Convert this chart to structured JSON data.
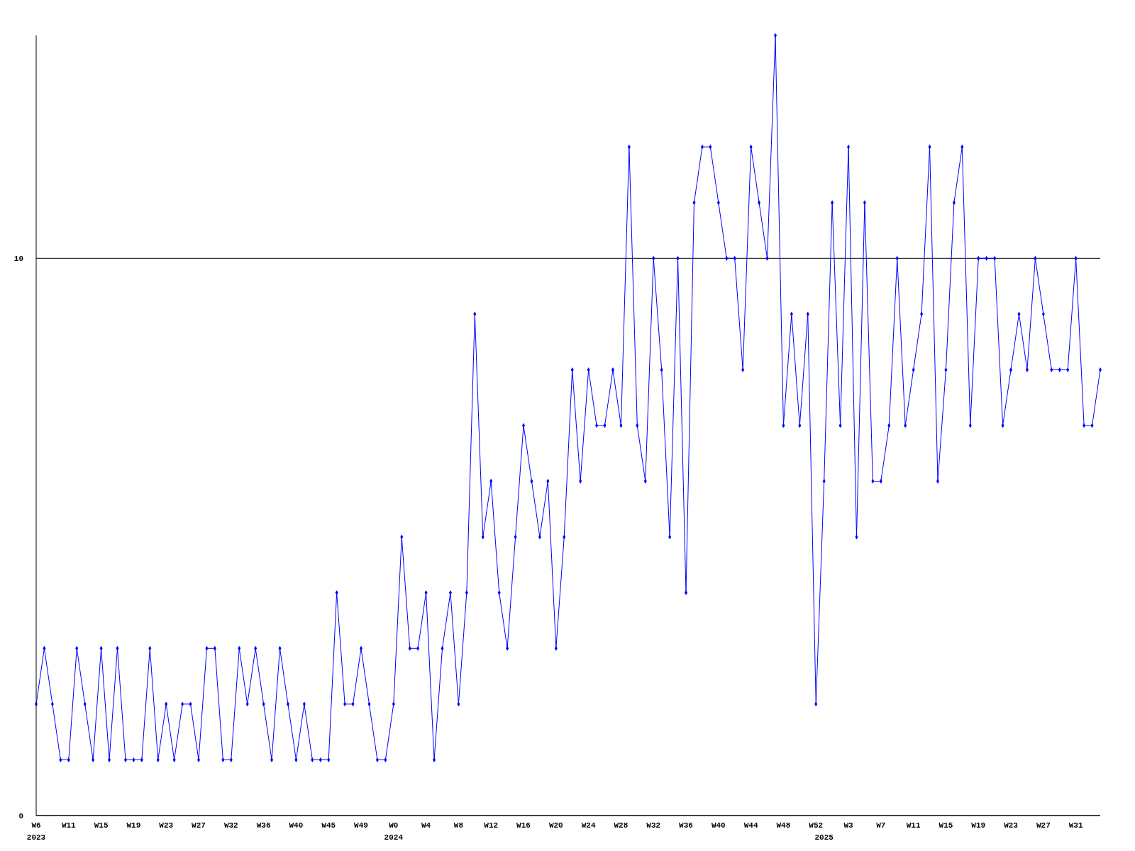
{
  "chart_data": {
    "type": "line",
    "categories": [
      "W6\n2023",
      null,
      null,
      null,
      "W11",
      null,
      null,
      null,
      "W15",
      null,
      null,
      null,
      "W19",
      null,
      null,
      null,
      "W23",
      null,
      null,
      null,
      "W27",
      null,
      null,
      null,
      "W32",
      null,
      null,
      null,
      "W36",
      null,
      null,
      null,
      "W40",
      null,
      null,
      null,
      "W45",
      null,
      null,
      null,
      "W49",
      null,
      null,
      null,
      "W0\n2024",
      null,
      null,
      null,
      "W4",
      null,
      null,
      null,
      "W8",
      null,
      null,
      null,
      "W12",
      null,
      null,
      null,
      "W16",
      null,
      null,
      null,
      "W20",
      null,
      null,
      null,
      "W24",
      null,
      null,
      null,
      "W28",
      null,
      null,
      null,
      "W32",
      null,
      null,
      null,
      "W36",
      null,
      null,
      null,
      "W40",
      null,
      null,
      null,
      "W44",
      null,
      null,
      null,
      "W48",
      null,
      null,
      null,
      "W52",
      "\n2025",
      null,
      null,
      "W3",
      null,
      null,
      null,
      "W7",
      null,
      null,
      null,
      "W11",
      null,
      null,
      null,
      "W15",
      null,
      null,
      null,
      "W19",
      null,
      null,
      null,
      "W23",
      null,
      null,
      null,
      "W27",
      null,
      null,
      null,
      "W31",
      null,
      null,
      null
    ],
    "series": [
      {
        "color": "#0000ff",
        "values": [
          2,
          3,
          2,
          1,
          1,
          3,
          2,
          1,
          3,
          1,
          3,
          1,
          1,
          1,
          3,
          1,
          2,
          1,
          2,
          2,
          1,
          3,
          3,
          1,
          1,
          3,
          2,
          3,
          2,
          1,
          3,
          2,
          1,
          2,
          1,
          1,
          1,
          4,
          2,
          2,
          3,
          2,
          1,
          1,
          2,
          5,
          3,
          3,
          4,
          1,
          3,
          4,
          2,
          4,
          9,
          5,
          6,
          4,
          3,
          5,
          7,
          6,
          5,
          6,
          3,
          5,
          8,
          6,
          8,
          7,
          7,
          8,
          7,
          12,
          7,
          6,
          10,
          8,
          5,
          10,
          4,
          11,
          12,
          12,
          11,
          10,
          10,
          8,
          12,
          11,
          10,
          14,
          7,
          9,
          7,
          9,
          2,
          6,
          11,
          7,
          12,
          5,
          11,
          6,
          6,
          7,
          10,
          7,
          8,
          9,
          12,
          6,
          8,
          11,
          12,
          7,
          10,
          10,
          10,
          7,
          8,
          9,
          8,
          10,
          9,
          8,
          8,
          8,
          10,
          7,
          7,
          8
        ]
      }
    ],
    "ylim": [
      0,
      14
    ],
    "yticks": [
      0,
      10
    ],
    "grid": "y",
    "marker": "diamond",
    "line_style": "solid"
  }
}
